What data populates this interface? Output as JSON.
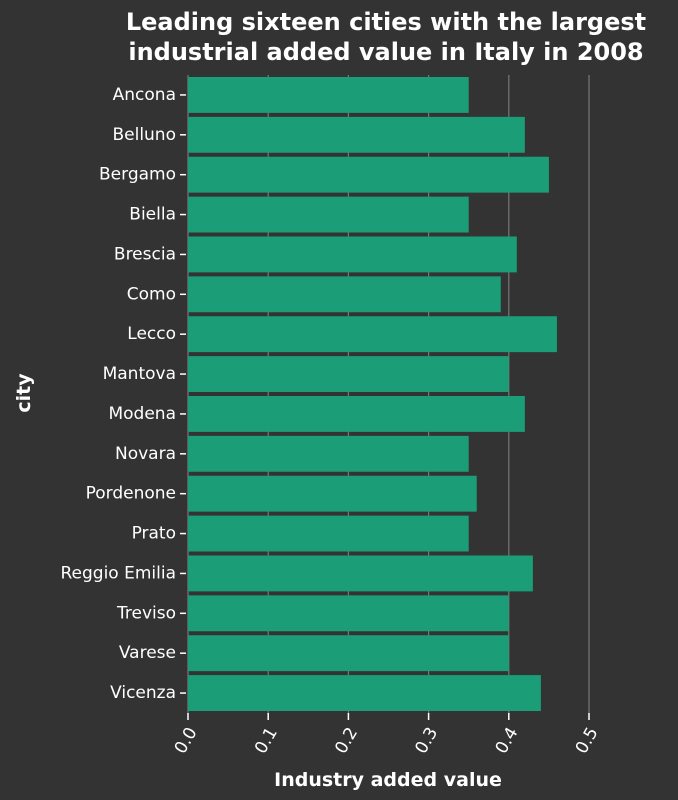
{
  "chart_data": {
    "type": "bar",
    "orientation": "horizontal",
    "title": "Leading sixteen cities with the largest industrial added value in Italy in 2008",
    "title_lines": [
      "Leading sixteen cities with the largest",
      "industrial added value in Italy in 2008"
    ],
    "xlabel": "Industry added value",
    "ylabel": "city",
    "xlim": [
      0,
      0.5
    ],
    "x_ticks": [
      "0.0",
      "0.1",
      "0.2",
      "0.3",
      "0.4",
      "0.5"
    ],
    "x_tick_values": [
      0,
      0.1,
      0.2,
      0.3,
      0.4,
      0.5
    ],
    "grid": true,
    "categories": [
      "Ancona",
      "Belluno",
      "Bergamo",
      "Biella",
      "Brescia",
      "Como",
      "Lecco",
      "Mantova",
      "Modena",
      "Novara",
      "Pordenone",
      "Prato",
      "Reggio Emilia",
      "Treviso",
      "Varese",
      "Vicenza"
    ],
    "values": [
      0.35,
      0.42,
      0.45,
      0.35,
      0.41,
      0.39,
      0.46,
      0.4,
      0.42,
      0.35,
      0.36,
      0.35,
      0.43,
      0.4,
      0.4,
      0.44
    ],
    "colors": {
      "background": "#333333",
      "bar": "#1b9e77",
      "text": "#ffffff",
      "grid": "#777777",
      "axis": "#ffffff"
    }
  }
}
